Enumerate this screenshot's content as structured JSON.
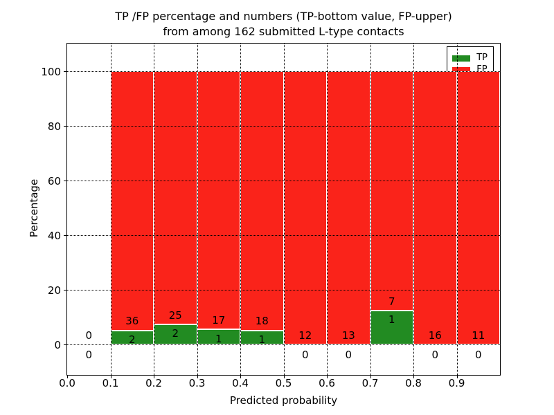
{
  "chart_data": {
    "type": "bar",
    "stacked": true,
    "title_line1": "TP /FP percentage and numbers (TP-bottom value, FP-upper)",
    "title_line2": "from among 162 submitted L-type contacts",
    "total_submitted": 162,
    "xlabel": "Predicted probability",
    "ylabel": "Percentage",
    "xlim": [
      0.0,
      1.0
    ],
    "ylim": [
      -11,
      110
    ],
    "xticks": [
      "0.0",
      "0.1",
      "0.2",
      "0.3",
      "0.4",
      "0.5",
      "0.6",
      "0.7",
      "0.8",
      "0.9"
    ],
    "yticks": [
      0,
      20,
      40,
      60,
      80,
      100
    ],
    "grid": true,
    "bar_total_pct": 100,
    "legend": {
      "position": "upper-right",
      "items": [
        {
          "label": "TP",
          "color": "#228b22"
        },
        {
          "label": "FP",
          "color": "#fa231a"
        }
      ]
    },
    "colors": {
      "tp": "#228b22",
      "fp": "#fa231a",
      "bar_edge": "#ffffff",
      "grid": "#000000",
      "text": "#000000"
    },
    "bins": [
      {
        "x0": 0.0,
        "x1": 0.1,
        "tp": 0,
        "fp": 0
      },
      {
        "x0": 0.1,
        "x1": 0.2,
        "tp": 2,
        "fp": 36
      },
      {
        "x0": 0.2,
        "x1": 0.3,
        "tp": 2,
        "fp": 25
      },
      {
        "x0": 0.3,
        "x1": 0.4,
        "tp": 1,
        "fp": 17
      },
      {
        "x0": 0.4,
        "x1": 0.5,
        "tp": 1,
        "fp": 18
      },
      {
        "x0": 0.5,
        "x1": 0.6,
        "tp": 0,
        "fp": 12
      },
      {
        "x0": 0.6,
        "x1": 0.7,
        "tp": 0,
        "fp": 13
      },
      {
        "x0": 0.7,
        "x1": 0.8,
        "tp": 1,
        "fp": 7
      },
      {
        "x0": 0.8,
        "x1": 0.9,
        "tp": 0,
        "fp": 16
      },
      {
        "x0": 0.9,
        "x1": 1.0,
        "tp": 0,
        "fp": 11
      }
    ]
  }
}
